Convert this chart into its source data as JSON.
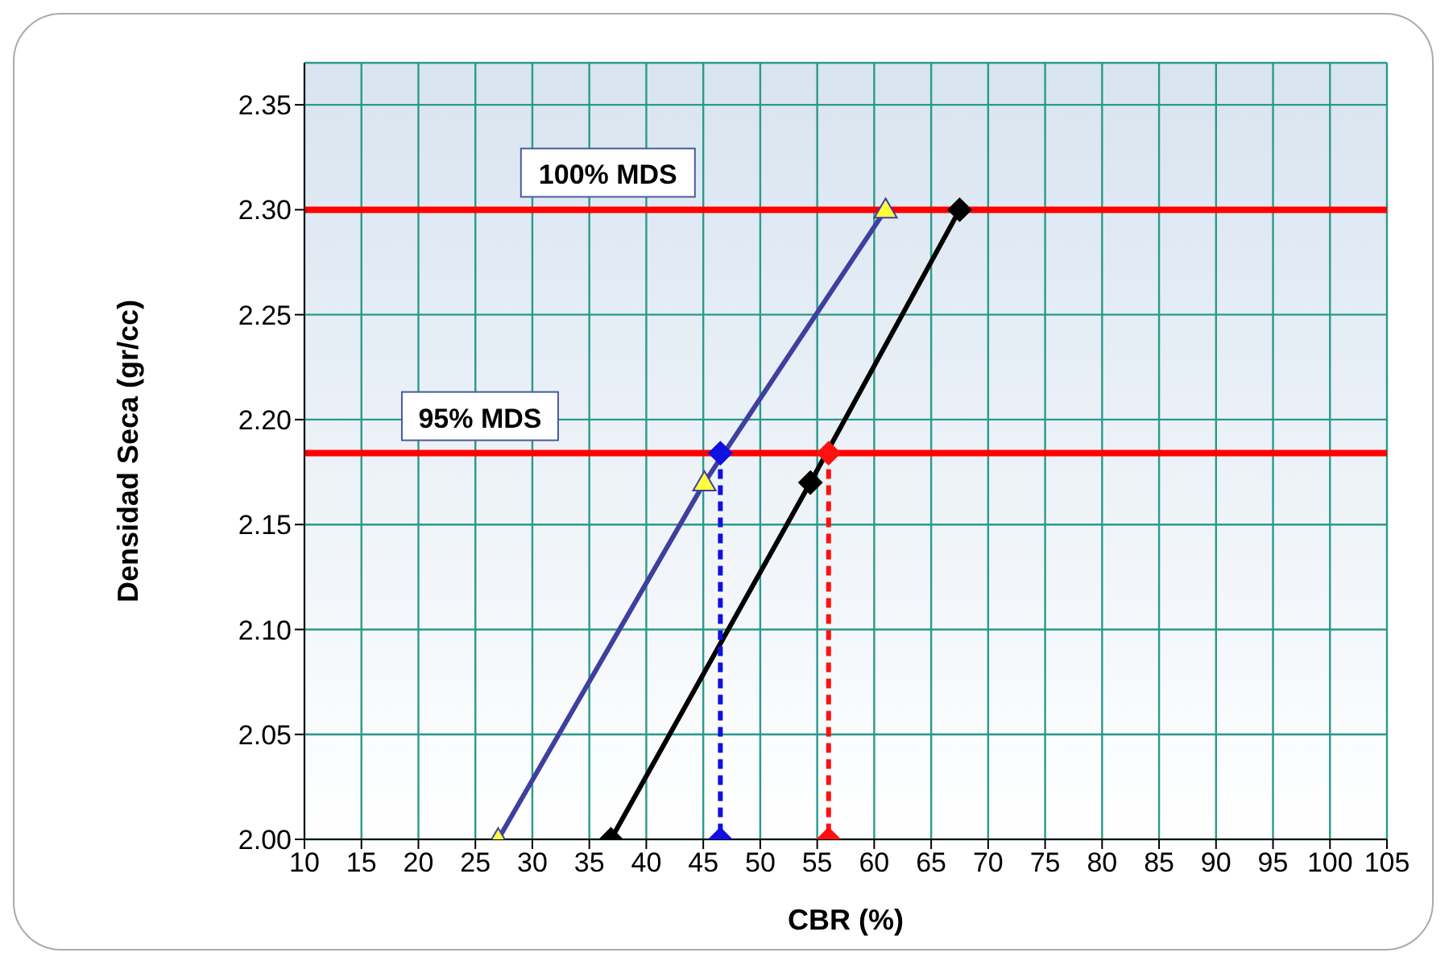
{
  "chart_data": {
    "type": "line",
    "xlabel": "CBR  (%)",
    "ylabel": "Densidad Seca (gr/cc)",
    "xlim": [
      10,
      105
    ],
    "xticks": [
      10,
      15,
      20,
      25,
      30,
      35,
      40,
      45,
      50,
      55,
      60,
      65,
      70,
      75,
      80,
      85,
      90,
      95,
      100,
      105
    ],
    "ylim": [
      2.0,
      2.37
    ],
    "yticks": [
      {
        "value": 2.0,
        "label": "2.00"
      },
      2.05,
      {
        "value": 2.1,
        "label": "2.10"
      },
      2.15,
      {
        "value": 2.2,
        "label": "2.20"
      },
      2.25,
      {
        "value": 2.3,
        "label": "2.30"
      },
      2.35
    ],
    "grid": true,
    "series": [
      {
        "color": "#3f3f9f",
        "marker": "triangle",
        "line_style": "solid",
        "x": [
          27,
          45.1,
          61
        ],
        "values": [
          2.0,
          2.17,
          2.3
        ]
      },
      {
        "color": "#000000",
        "marker": "diamond",
        "line_style": "solid",
        "x": [
          36.9,
          54.4,
          67.5
        ],
        "values": [
          2.0,
          2.17,
          2.3
        ]
      },
      {
        "color": "#1010e0",
        "marker": "diamond",
        "line_style": "dashed",
        "x": [
          46.5,
          46.5
        ],
        "values": [
          2.184,
          2.0
        ]
      },
      {
        "color": "#ff1010",
        "marker": "diamond",
        "line_style": "dashed",
        "x": [
          56,
          56
        ],
        "values": [
          2.184,
          2.0
        ]
      }
    ],
    "ref_lines": [
      {
        "axis": "y",
        "value": 2.3,
        "label": "100% MDS",
        "color": "#ff0000"
      },
      {
        "axis": "y",
        "value": 2.184,
        "label": "95% MDS",
        "color": "#ff0000"
      }
    ]
  }
}
